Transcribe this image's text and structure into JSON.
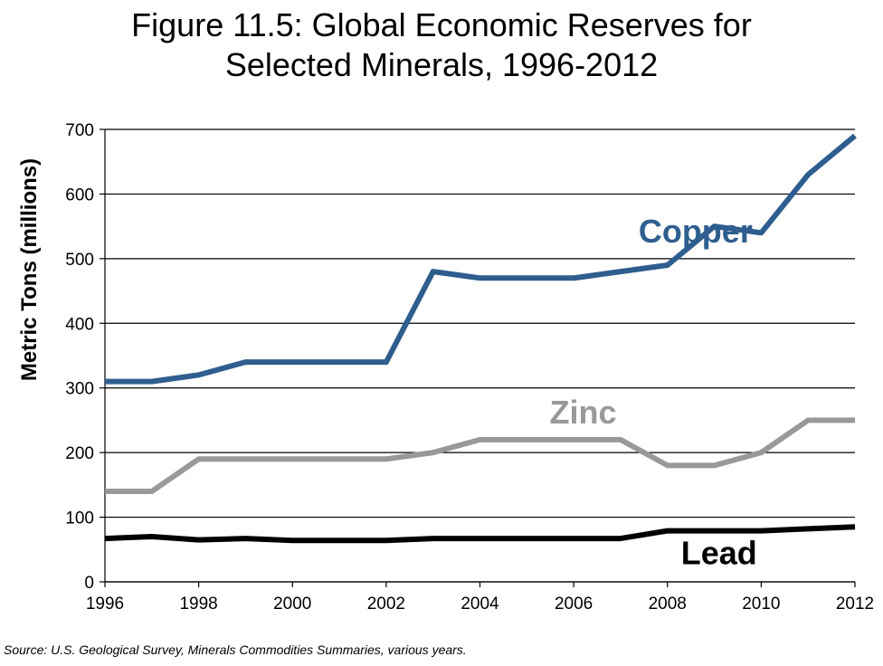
{
  "chart_data": {
    "type": "line",
    "title_line1": "Figure 11.5: Global Economic Reserves for",
    "title_line2": "Selected Minerals, 1996-2012",
    "xlabel": "",
    "ylabel": "Metric Tons (millions)",
    "xlim": [
      1996,
      2012
    ],
    "ylim": [
      0,
      700
    ],
    "x_ticks": [
      "1996",
      "1998",
      "2000",
      "2002",
      "2004",
      "2006",
      "2008",
      "2010",
      "2012"
    ],
    "y_ticks": [
      "0",
      "100",
      "200",
      "300",
      "400",
      "500",
      "600",
      "700"
    ],
    "grid": true,
    "x": [
      1996,
      1997,
      1998,
      1999,
      2000,
      2001,
      2002,
      2003,
      2004,
      2005,
      2006,
      2007,
      2008,
      2009,
      2010,
      2011,
      2012
    ],
    "series": [
      {
        "name": "Copper",
        "label": "Copper",
        "color": "#2e5e8e",
        "values": [
          310,
          310,
          320,
          340,
          340,
          340,
          340,
          480,
          470,
          470,
          470,
          480,
          490,
          550,
          540,
          630,
          690
        ]
      },
      {
        "name": "Zinc",
        "label": "Zinc",
        "color": "#999999",
        "values": [
          140,
          140,
          190,
          190,
          190,
          190,
          190,
          200,
          220,
          220,
          220,
          220,
          180,
          180,
          200,
          250,
          250
        ]
      },
      {
        "name": "Lead",
        "label": "Lead",
        "color": "#000000",
        "values": [
          67,
          70,
          65,
          67,
          64,
          64,
          64,
          67,
          67,
          67,
          67,
          67,
          79,
          79,
          79,
          82,
          85
        ]
      }
    ],
    "source": "Source: U.S. Geological Survey, Minerals Commodities Summaries, various years."
  }
}
